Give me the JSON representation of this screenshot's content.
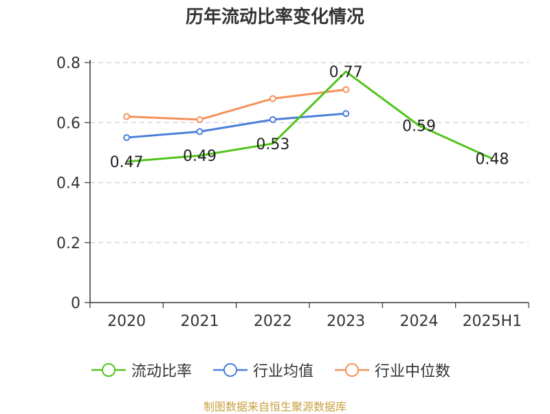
{
  "title": "历年流动比率变化情况",
  "source": "制图数据来自恒生聚源数据库",
  "chart_data": {
    "type": "line",
    "title": "历年流动比率变化情况",
    "categories": [
      "2020",
      "2021",
      "2022",
      "2023",
      "2024",
      "2025H1"
    ],
    "ylim": [
      0,
      0.8
    ],
    "yticks": [
      "0",
      "0.2",
      "0.4",
      "0.6",
      "0.8"
    ],
    "grid": true,
    "legend_position": "bottom",
    "series": [
      {
        "name": "流动比率",
        "color": "#52c41a",
        "values": [
          0.47,
          0.49,
          0.53,
          0.77,
          0.59,
          0.48
        ],
        "labels": [
          "0.47",
          "0.49",
          "0.53",
          "0.77",
          "0.59",
          "0.48"
        ]
      },
      {
        "name": "行业均值",
        "color": "#4a7fd8",
        "values": [
          0.55,
          0.57,
          0.61,
          0.63,
          null,
          null
        ]
      },
      {
        "name": "行业中位数",
        "color": "#f5915a",
        "values": [
          0.62,
          0.61,
          0.68,
          0.71,
          null,
          null
        ]
      }
    ]
  }
}
